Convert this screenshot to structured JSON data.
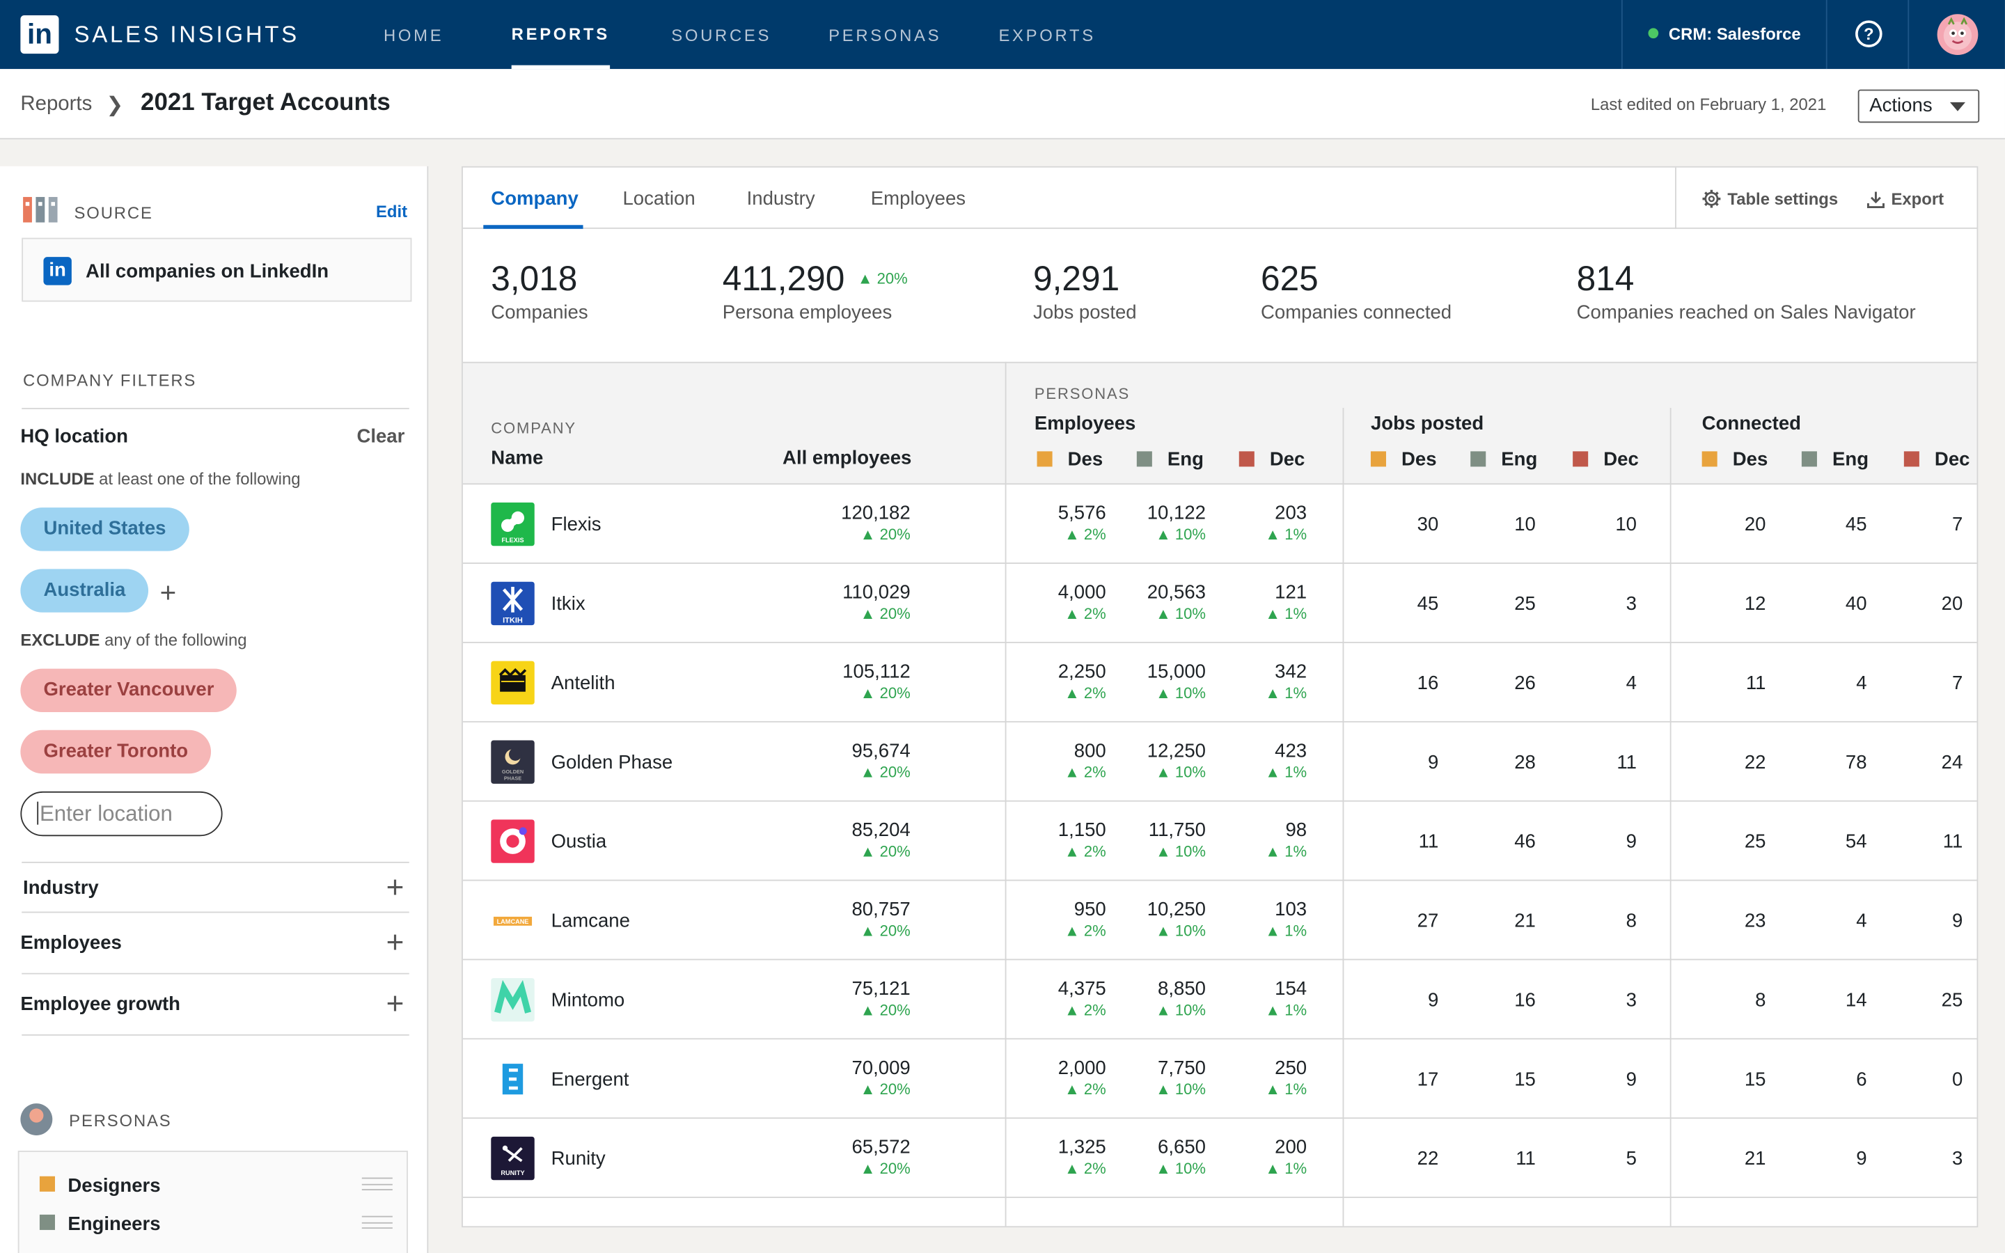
{
  "app": {
    "logo": "in",
    "name": "SALES INSIGHTS"
  },
  "nav": [
    "HOME",
    "REPORTS",
    "SOURCES",
    "PERSONAS",
    "EXPORTS"
  ],
  "crm": "CRM: Salesforce",
  "help_icon": "question-circle-icon",
  "breadcrumb": {
    "parent": "Reports",
    "sep": "❯",
    "title": "2021 Target Accounts"
  },
  "last_edited": "Last edited on February 1, 2021",
  "actions_label": "Actions",
  "sidebar": {
    "source_label": "SOURCE",
    "edit_label": "Edit",
    "source_logo": "in",
    "source_value": "All companies on LinkedIn",
    "filters_label": "COMPANY FILTERS",
    "hq_location": "HQ location",
    "clear_label": "Clear",
    "include_kw": "INCLUDE",
    "include_rest": " at least one of the following",
    "include": [
      "United States",
      "Australia"
    ],
    "exclude_kw": "EXCLUDE",
    "exclude_rest": " any of the following",
    "exclude": [
      "Greater Vancouver",
      "Greater Toronto"
    ],
    "location_placeholder": "Enter location",
    "accordions": [
      "Industry",
      "Employees",
      "Employee growth"
    ],
    "personas_label": "PERSONAS",
    "personas": [
      {
        "name": "Designers",
        "color": "#e8a33d"
      },
      {
        "name": "Engineers",
        "color": "#7f8f84"
      }
    ]
  },
  "tabs": [
    "Company",
    "Location",
    "Industry",
    "Employees"
  ],
  "tools": {
    "settings": "Table settings",
    "export": "Export"
  },
  "stats": [
    {
      "num": "3,018",
      "label": "Companies"
    },
    {
      "num": "411,290",
      "label": "Persona employees",
      "up": "▲ 20%"
    },
    {
      "num": "9,291",
      "label": "Jobs posted"
    },
    {
      "num": "625",
      "label": "Companies connected"
    },
    {
      "num": "814",
      "label": "Companies reached on Sales Navigator"
    }
  ],
  "table": {
    "company_small": "COMPANY",
    "name_col": "Name",
    "all_emp_col": "All employees",
    "personas_small": "PERSONAS",
    "groups": [
      "Employees",
      "Jobs posted",
      "Connected"
    ],
    "legend": [
      {
        "label": "Des",
        "color": "#e8a33d"
      },
      {
        "label": "Eng",
        "color": "#7f8f84"
      },
      {
        "label": "Dec",
        "color": "#c0584a"
      }
    ],
    "growth": {
      "all": "▲ 20%",
      "des": "▲ 2%",
      "eng": "▲ 10%",
      "dec": "▲ 1%"
    },
    "rows": [
      {
        "name": "Flexis",
        "logo_bg": "#1fb84a",
        "logo_text": "FLEXIS",
        "all": "120,182",
        "emp": [
          "5,576",
          "10,122",
          "203"
        ],
        "jobs": [
          "30",
          "10",
          "10"
        ],
        "conn": [
          "20",
          "45",
          "7"
        ]
      },
      {
        "name": "Itkix",
        "logo_bg": "#1f4fb5",
        "logo_text": "ITKIH",
        "all": "110,029",
        "emp": [
          "4,000",
          "20,563",
          "121"
        ],
        "jobs": [
          "45",
          "25",
          "3"
        ],
        "conn": [
          "12",
          "40",
          "20"
        ]
      },
      {
        "name": "Antelith",
        "logo_bg": "#f7d417",
        "logo_text": "",
        "all": "105,112",
        "emp": [
          "2,250",
          "15,000",
          "342"
        ],
        "jobs": [
          "16",
          "26",
          "4"
        ],
        "conn": [
          "11",
          "4",
          "7"
        ]
      },
      {
        "name": "Golden Phase",
        "logo_bg": "#2f3142",
        "logo_text": "GOLDEN PHASE",
        "all": "95,674",
        "emp": [
          "800",
          "12,250",
          "423"
        ],
        "jobs": [
          "9",
          "28",
          "11"
        ],
        "conn": [
          "22",
          "78",
          "24"
        ]
      },
      {
        "name": "Oustia",
        "logo_bg": "#f0345a",
        "logo_text": "",
        "all": "85,204",
        "emp": [
          "1,150",
          "11,750",
          "98"
        ],
        "jobs": [
          "11",
          "46",
          "9"
        ],
        "conn": [
          "25",
          "54",
          "11"
        ]
      },
      {
        "name": "Lamcane",
        "logo_bg": "#ffffff",
        "logo_text": "LAMCANE",
        "all": "80,757",
        "emp": [
          "950",
          "10,250",
          "103"
        ],
        "jobs": [
          "27",
          "21",
          "8"
        ],
        "conn": [
          "23",
          "4",
          "9"
        ]
      },
      {
        "name": "Mintomo",
        "logo_bg": "#e3f6f1",
        "logo_text": "",
        "all": "75,121",
        "emp": [
          "4,375",
          "8,850",
          "154"
        ],
        "jobs": [
          "9",
          "16",
          "3"
        ],
        "conn": [
          "8",
          "14",
          "25"
        ]
      },
      {
        "name": "Energent",
        "logo_bg": "#ffffff",
        "logo_text": "E",
        "all": "70,009",
        "emp": [
          "2,000",
          "7,750",
          "250"
        ],
        "jobs": [
          "17",
          "15",
          "9"
        ],
        "conn": [
          "15",
          "6",
          "0"
        ]
      },
      {
        "name": "Runity",
        "logo_bg": "#1d1836",
        "logo_text": "RUNITY",
        "all": "65,572",
        "emp": [
          "1,325",
          "6,650",
          "200"
        ],
        "jobs": [
          "22",
          "11",
          "5"
        ],
        "conn": [
          "21",
          "9",
          "3"
        ]
      }
    ]
  }
}
